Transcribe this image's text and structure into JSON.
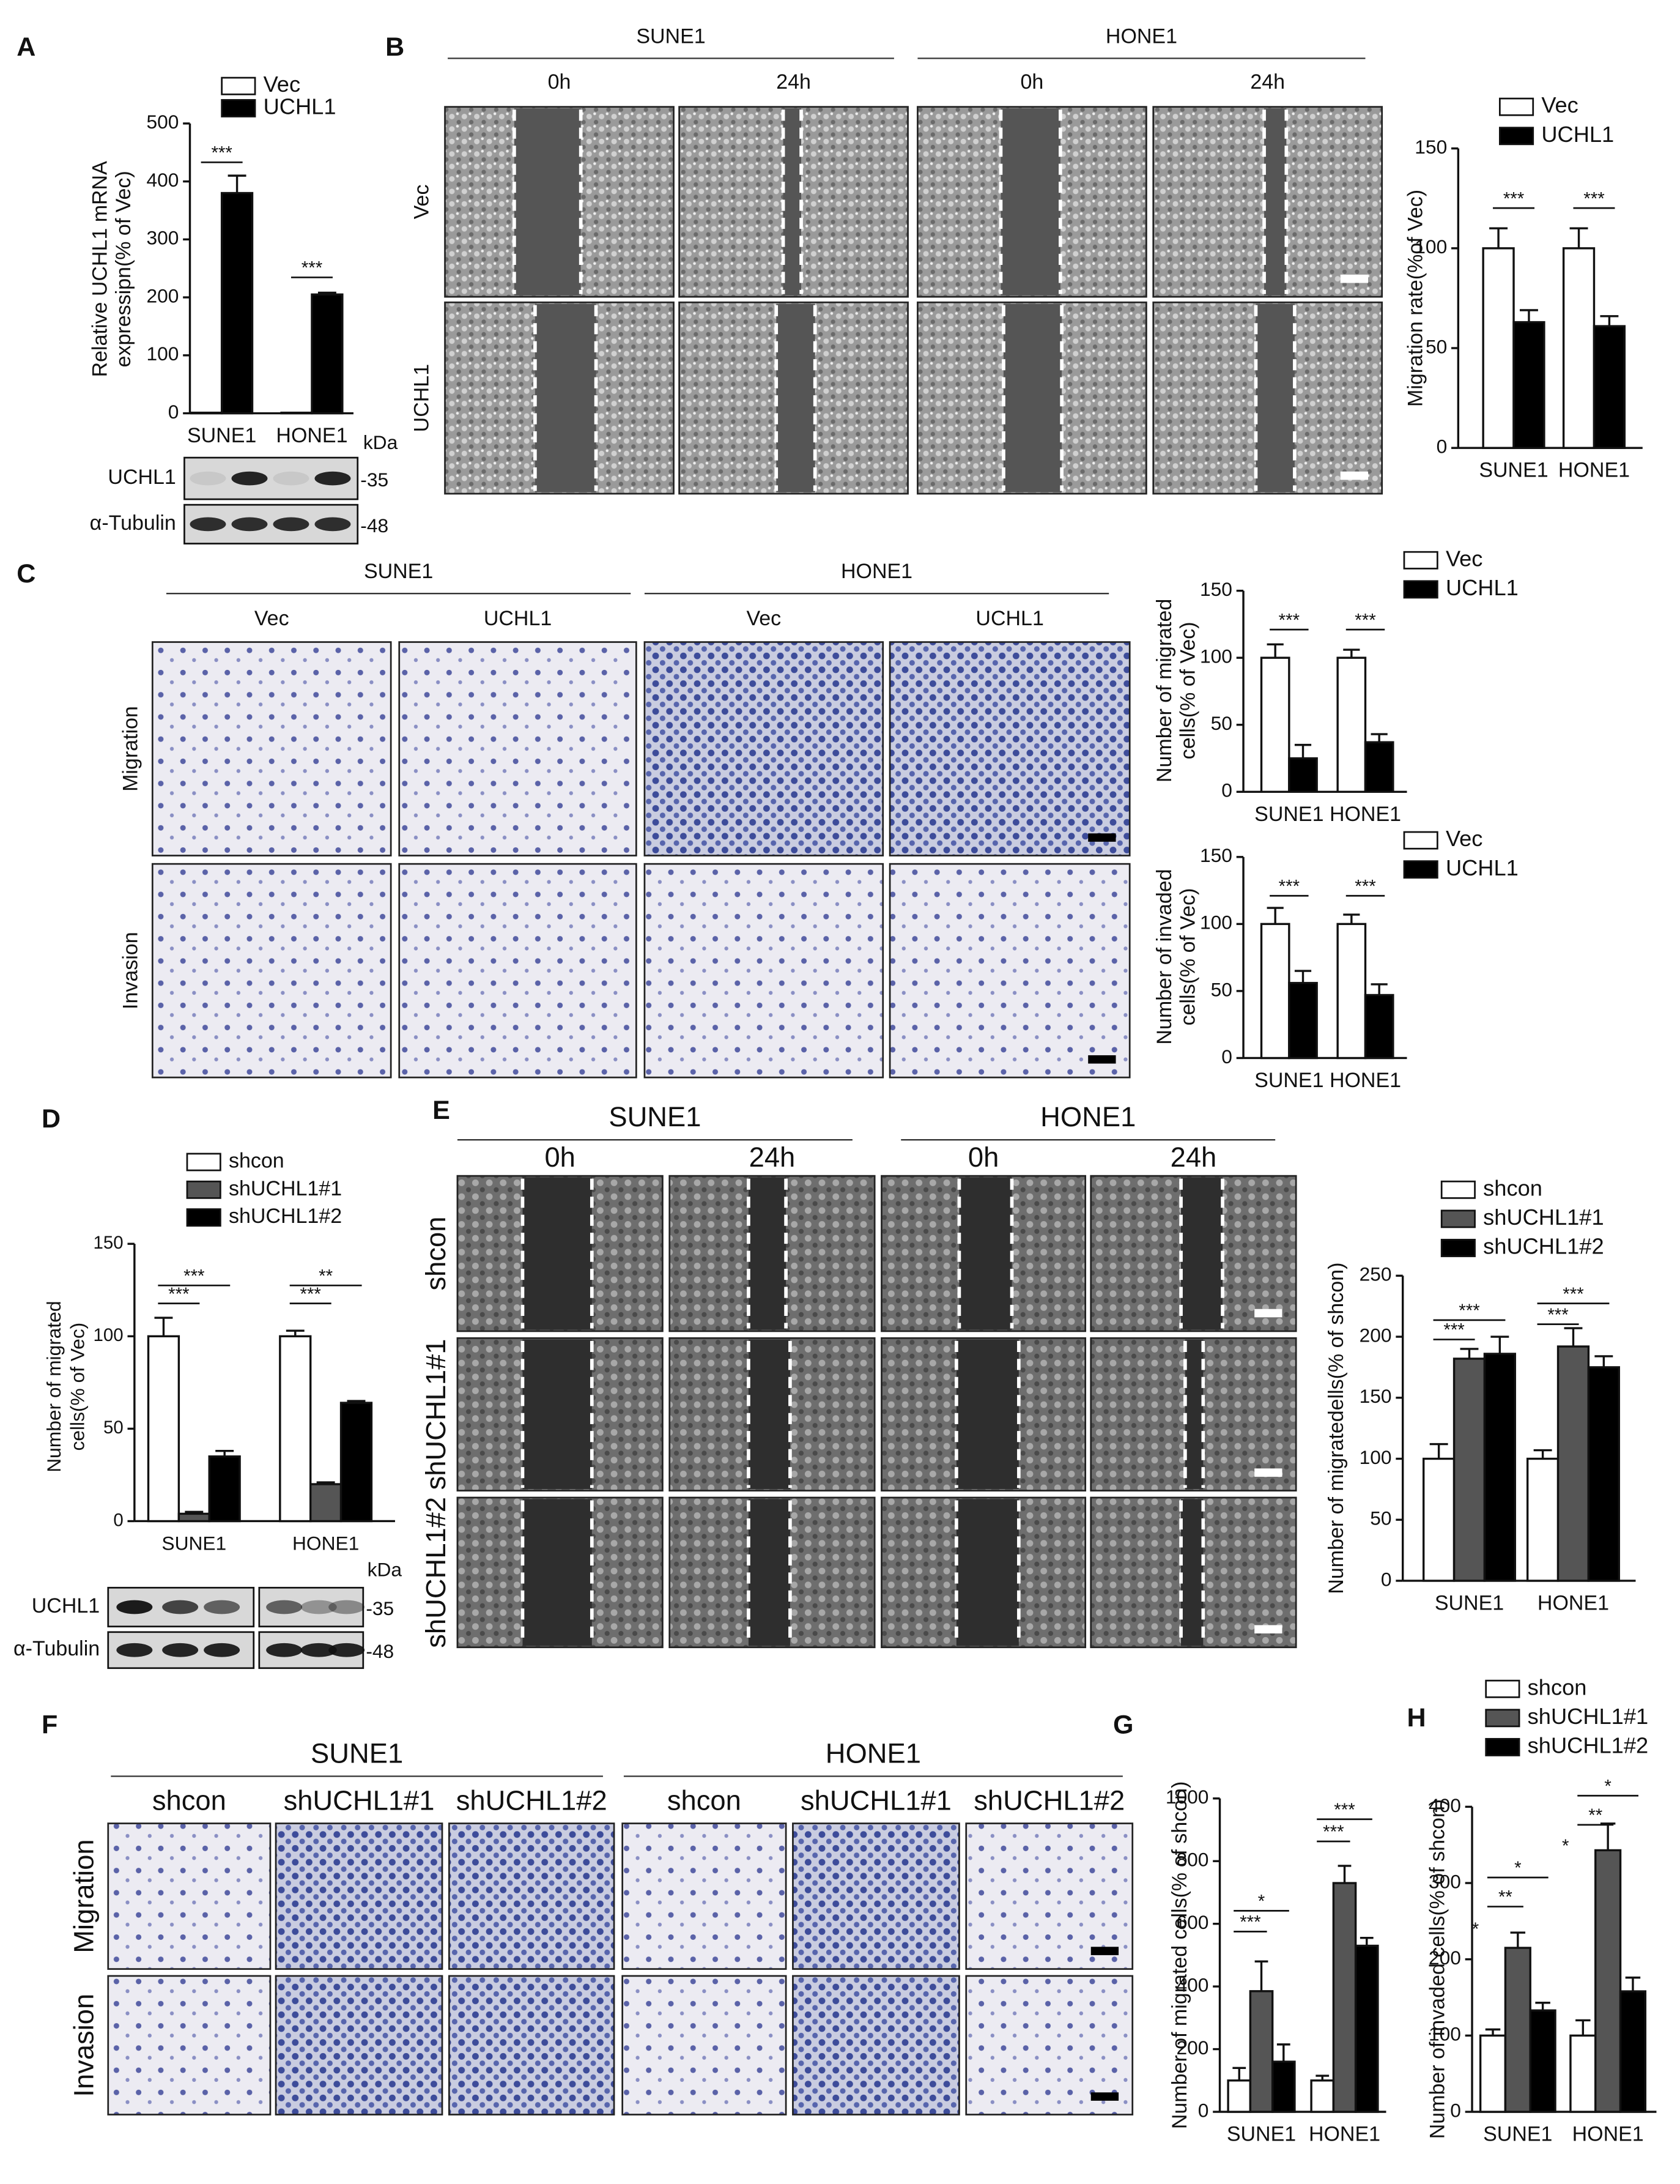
{
  "panel_labels": [
    "A",
    "B",
    "C",
    "D",
    "E",
    "F",
    "G",
    "H"
  ],
  "chart_data": [
    {
      "type": "bar",
      "ylabel": [
        "Relative UCHL1 mRNA",
        "expressipn(% of Vec)"
      ],
      "categories": [
        "SUNE1",
        "HONE1"
      ],
      "series": [
        {
          "name": "Vec",
          "color": "#ffffff",
          "values": [
            1,
            1
          ]
        },
        {
          "name": "UCHL1",
          "color": "#000000",
          "values": [
            380,
            205
          ],
          "errors": [
            30,
            3
          ]
        }
      ],
      "ylim": [
        0,
        500
      ],
      "yticks": [
        0,
        100,
        200,
        300,
        400,
        500
      ],
      "annotations": [
        "***",
        "***"
      ]
    },
    {
      "type": "bar",
      "ylabel": [
        "Migration rate(%of Vec)"
      ],
      "categories": [
        "SUNE1",
        "HONE1"
      ],
      "series": [
        {
          "name": "Vec",
          "color": "#ffffff",
          "values": [
            100,
            100
          ],
          "errors": [
            10,
            10
          ]
        },
        {
          "name": "UCHL1",
          "color": "#000000",
          "values": [
            63,
            61
          ],
          "errors": [
            6,
            5
          ]
        }
      ],
      "ylim": [
        0,
        150
      ],
      "yticks": [
        0,
        50,
        100,
        150
      ],
      "annotations": [
        "***",
        "***"
      ]
    },
    {
      "type": "bar",
      "ylabel": [
        "Number of migrated",
        "cells(% of Vec)"
      ],
      "categories": [
        "SUNE1",
        "HONE1"
      ],
      "series": [
        {
          "name": "Vec",
          "color": "#ffffff",
          "values": [
            100,
            100
          ],
          "errors": [
            10,
            6
          ]
        },
        {
          "name": "UCHL1",
          "color": "#000000",
          "values": [
            25,
            37
          ],
          "errors": [
            10,
            6
          ]
        }
      ],
      "ylim": [
        0,
        150
      ],
      "yticks": [
        0,
        50,
        100,
        150
      ],
      "annotations": [
        "***",
        "***"
      ]
    },
    {
      "type": "bar",
      "ylabel": [
        "Number of invaded",
        "cells(% of Vec)"
      ],
      "categories": [
        "SUNE1",
        "HONE1"
      ],
      "series": [
        {
          "name": "Vec",
          "color": "#ffffff",
          "values": [
            100,
            100
          ],
          "errors": [
            12,
            7
          ]
        },
        {
          "name": "UCHL1",
          "color": "#000000",
          "values": [
            56,
            47
          ],
          "errors": [
            9,
            8
          ]
        }
      ],
      "ylim": [
        0,
        150
      ],
      "yticks": [
        0,
        50,
        100,
        150
      ],
      "annotations": [
        "***",
        "***"
      ]
    },
    {
      "type": "bar",
      "ylabel": [
        "Number of migrated",
        "cells(% of Vec)"
      ],
      "categories": [
        "SUNE1",
        "HONE1"
      ],
      "series": [
        {
          "name": "shcon",
          "color": "#ffffff",
          "values": [
            100,
            100
          ],
          "errors": [
            10,
            3
          ]
        },
        {
          "name": "shUCHL1#1",
          "color": "#555555",
          "values": [
            4,
            20
          ],
          "errors": [
            1,
            1
          ]
        },
        {
          "name": "shUCHL1#2",
          "color": "#000000",
          "values": [
            35,
            64
          ],
          "errors": [
            3,
            1
          ]
        }
      ],
      "ylim": [
        0,
        150
      ],
      "yticks": [
        0,
        50,
        100,
        150
      ],
      "annotations": [
        "***",
        "***",
        "***",
        "**"
      ]
    },
    {
      "type": "bar",
      "ylabel": [
        "Number of migratedells(% of shcon)"
      ],
      "categories": [
        "SUNE1",
        "HONE1"
      ],
      "series": [
        {
          "name": "shcon",
          "color": "#ffffff",
          "values": [
            100,
            100
          ],
          "errors": [
            12,
            7
          ]
        },
        {
          "name": "shUCHL1#1",
          "color": "#555555",
          "values": [
            182,
            192
          ],
          "errors": [
            8,
            15
          ]
        },
        {
          "name": "shUCHL1#2",
          "color": "#000000",
          "values": [
            186,
            175
          ],
          "errors": [
            14,
            9
          ]
        }
      ],
      "ylim": [
        0,
        250
      ],
      "yticks": [
        0,
        50,
        100,
        150,
        200,
        250
      ],
      "annotations": [
        "***",
        "***",
        "***",
        "***"
      ]
    },
    {
      "type": "bar",
      "ylabel": [
        "Number of migrated cells(% of shcon)"
      ],
      "categories": [
        "SUNE1",
        "HONE1"
      ],
      "series": [
        {
          "color": "#ffffff",
          "values": [
            100,
            100
          ],
          "errors": [
            40,
            15
          ]
        },
        {
          "color": "#555555",
          "values": [
            385,
            730
          ],
          "errors": [
            95,
            55
          ]
        },
        {
          "color": "#000000",
          "values": [
            160,
            530
          ],
          "errors": [
            55,
            25
          ]
        }
      ],
      "ylim": [
        0,
        1000
      ],
      "yticks": [
        0,
        200,
        400,
        600,
        800,
        1000
      ],
      "annotations": [
        "*",
        "***",
        "***",
        "***"
      ]
    },
    {
      "type": "bar",
      "ylabel": [
        "Number of invaded cells(% of shcon)"
      ],
      "categories": [
        "SUNE1",
        "HONE1"
      ],
      "series": [
        {
          "name": "shcon",
          "color": "#ffffff",
          "values": [
            100,
            100
          ],
          "errors": [
            8,
            20
          ]
        },
        {
          "name": "shUCHL1#1",
          "color": "#555555",
          "values": [
            215,
            343
          ],
          "errors": [
            20,
            35
          ]
        },
        {
          "name": "shUCHL1#2",
          "color": "#000000",
          "values": [
            133,
            158
          ],
          "errors": [
            10,
            18
          ]
        }
      ],
      "ylim": [
        0,
        400
      ],
      "yticks": [
        0,
        100,
        200,
        300,
        400
      ],
      "annotations": [
        "*",
        "**",
        "*",
        "*",
        "**",
        "*"
      ]
    }
  ],
  "blot_A": {
    "unit": "kDa",
    "rows": [
      {
        "label": "UCHL1",
        "marker": "-35"
      },
      {
        "label": "α-Tubulin",
        "marker": "-48"
      }
    ]
  },
  "blot_D": {
    "unit": "kDa",
    "rows": [
      {
        "label": "UCHL1",
        "marker": "-35"
      },
      {
        "label": "α-Tubulin",
        "marker": "-48"
      }
    ]
  },
  "images_B": {
    "groups": [
      "SUNE1",
      "HONE1"
    ],
    "columns": [
      "0h",
      "24h",
      "0h",
      "24h"
    ],
    "rows": [
      "Vec",
      "UCHL1"
    ]
  },
  "images_C": {
    "groups": [
      "SUNE1",
      "HONE1"
    ],
    "columns": [
      "Vec",
      "UCHL1",
      "Vec",
      "UCHL1"
    ],
    "rows": [
      "Migration",
      "Invasion"
    ]
  },
  "images_E": {
    "groups": [
      "SUNE1",
      "HONE1"
    ],
    "columns": [
      "0h",
      "24h",
      "0h",
      "24h"
    ],
    "rows": [
      "shcon",
      "shUCHL1#1",
      "shUCHL1#2"
    ]
  },
  "images_F": {
    "groups": [
      "SUNE1",
      "HONE1"
    ],
    "columns": [
      "shcon",
      "shUCHL1#1",
      "shUCHL1#2",
      "shcon",
      "shUCHL1#1",
      "shUCHL1#2"
    ],
    "rows": [
      "Migration",
      "Invasion"
    ]
  }
}
